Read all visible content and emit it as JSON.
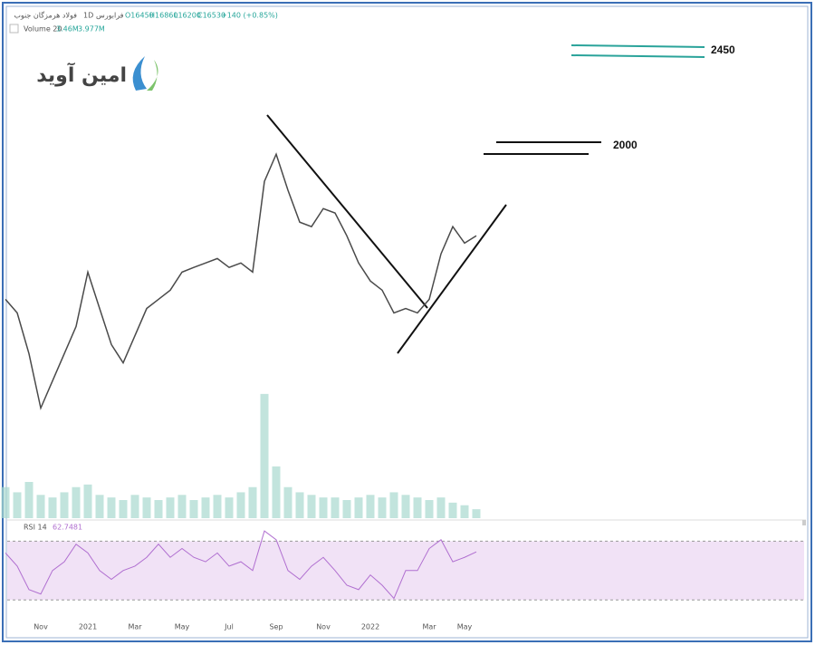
{
  "chart_data": {
    "type": "line",
    "header": {
      "symbol": "فولاد هرمزگان جنوب",
      "interval": "1D",
      "exchange": "فرابورس",
      "ohlc": [
        "O16450",
        "H16860",
        "L16200",
        "C16530",
        "+140 (+0.85%)"
      ]
    },
    "logo": "امین آوید",
    "categories": [
      null,
      null,
      null,
      "Nov",
      null,
      null,
      null,
      "2021",
      null,
      null,
      null,
      "Mar",
      null,
      null,
      null,
      "May",
      null,
      null,
      null,
      "Jul",
      null,
      null,
      null,
      "Sep",
      null,
      null,
      null,
      "Nov",
      null,
      null,
      null,
      "2022",
      null,
      null,
      null,
      null,
      "Mar",
      null,
      null,
      "May",
      null
    ],
    "series": [
      {
        "name": "Price",
        "color": "#4a4a4a",
        "values": [
          14100,
          13580,
          12020,
          9940,
          10980,
          12020,
          13060,
          15140,
          13750,
          12370,
          11670,
          12710,
          13750,
          14100,
          14450,
          15140,
          15320,
          15490,
          15660,
          15320,
          15490,
          15140,
          18610,
          19650,
          18270,
          17050,
          16880,
          17570,
          17400,
          16530,
          15490,
          14800,
          14450,
          13580,
          13750,
          13580,
          14100,
          15840,
          16880,
          16250,
          16530
        ]
      }
    ],
    "ylim": [
      5800,
      25200
    ],
    "annotations": [
      "2450",
      "2000"
    ],
    "volume": {
      "label": "Volume 20",
      "last": "3.46M",
      "average": "3.977M",
      "color": "#a8d8cf",
      "ylim": [
        0,
        70
      ],
      "values": [
        12,
        10,
        14,
        9,
        8,
        10,
        12,
        13,
        9,
        8,
        7,
        9,
        8,
        7,
        8,
        9,
        7,
        8,
        9,
        8,
        10,
        12,
        48,
        20,
        12,
        10,
        9,
        8,
        8,
        7,
        8,
        9,
        8,
        10,
        9,
        8,
        7,
        8,
        6,
        5,
        3.46
      ]
    },
    "rsi": {
      "label": "RSI 14",
      "last": "62.7481",
      "color": "#b06fd0",
      "band_color": "#f1e2f6",
      "ylim": [
        19,
        82
      ],
      "bands": [
        30,
        70
      ],
      "values": [
        62,
        53,
        37,
        34,
        50,
        56,
        68,
        62,
        50,
        44,
        50,
        53,
        59,
        68,
        59,
        65,
        59,
        56,
        62,
        53,
        56,
        50,
        77,
        71,
        50,
        44,
        53,
        59,
        50,
        40,
        37,
        47,
        40,
        31,
        50,
        50,
        65,
        71,
        56,
        59,
        62.7481
      ]
    }
  }
}
